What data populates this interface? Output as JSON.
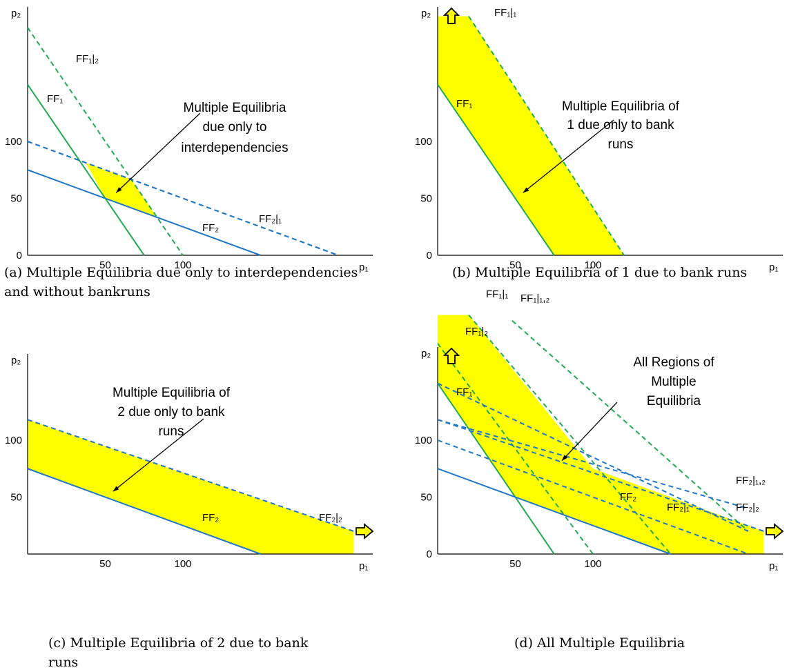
{
  "chart_data": [
    {
      "id": "a",
      "type": "line",
      "caption": "(a) Multiple Equilibria due only to interdependencies and without bankruns",
      "xlabel": "p₁",
      "ylabel": "p₂",
      "xticks": [
        "50",
        "100"
      ],
      "yticks": [
        "0",
        "50",
        "100"
      ],
      "lines": [
        {
          "label": "FF₁|₂",
          "style": "dashed",
          "color": "#22aa55",
          "points": [
            [
              0,
              200
            ],
            [
              100,
              0
            ]
          ]
        },
        {
          "label": "FF₁",
          "style": "solid",
          "color": "#22aa55",
          "points": [
            [
              0,
              150
            ],
            [
              75,
              0
            ]
          ]
        },
        {
          "label": "",
          "style": "dashed",
          "color": "#1f78c8",
          "points": [
            [
              0,
              100
            ],
            [
              200,
              0
            ]
          ]
        },
        {
          "label": "FF₂|₁",
          "style": "dashed",
          "color": "#1f78c8",
          "points": [
            [
              0,
              100
            ],
            [
              200,
              0
            ]
          ]
        },
        {
          "label": "FF₂",
          "style": "solid",
          "color": "#1f78c8",
          "points": [
            [
              0,
              75
            ],
            [
              150,
              0
            ]
          ]
        }
      ],
      "regions": [
        {
          "color": "#ffff00",
          "points": [
            [
              37.5,
              81.25
            ],
            [
              66.7,
              66.7
            ],
            [
              83.3,
              33.3
            ],
            [
              50,
              50
            ]
          ]
        }
      ],
      "annotations": [
        {
          "text": [
            "Multiple Equilibria",
            "due only to",
            "interdependencies"
          ],
          "arrow_to": [
            57,
            55
          ]
        }
      ]
    },
    {
      "id": "b",
      "type": "line",
      "caption": "(b) Multiple Equilibria of 1 due to bank runs",
      "xlabel": "p₁",
      "ylabel": "p₂",
      "xticks": [
        "50",
        "100"
      ],
      "yticks": [
        "0",
        "50",
        "100"
      ],
      "lines": [
        {
          "label": "FF₁|₁",
          "style": "dashed",
          "color": "#22aa55",
          "points": [
            [
              20,
              210
            ],
            [
              120,
              0
            ]
          ]
        },
        {
          "label": "FF₁",
          "style": "solid",
          "color": "#22aa55",
          "points": [
            [
              0,
              150
            ],
            [
              75,
              0
            ]
          ]
        }
      ],
      "regions": [
        {
          "color": "#ffff00",
          "points": [
            [
              0,
              210
            ],
            [
              20,
              210
            ],
            [
              120,
              0
            ],
            [
              75,
              0
            ],
            [
              0,
              150
            ]
          ]
        }
      ],
      "annotations": [
        {
          "text": [
            "Multiple Equilibria of",
            "1 due only to bank",
            "runs"
          ],
          "arrow_to": [
            55,
            55
          ]
        }
      ]
    },
    {
      "id": "c",
      "type": "line",
      "caption": "(c) Multiple Equilibria of 2 due to bank runs",
      "xlabel": "p₁",
      "ylabel": "p₂",
      "xticks": [
        "50",
        "100"
      ],
      "yticks": [
        "50",
        "100"
      ],
      "lines": [
        {
          "label": "FF₂|₂",
          "style": "dashed",
          "color": "#1f78c8",
          "points": [
            [
              0,
              118
            ],
            [
              210,
              20
            ]
          ]
        },
        {
          "label": "FF₂",
          "style": "solid",
          "color": "#1f78c8",
          "points": [
            [
              0,
              75
            ],
            [
              150,
              0
            ]
          ]
        }
      ],
      "regions": [
        {
          "color": "#ffff00",
          "points": [
            [
              0,
              118
            ],
            [
              210,
              20
            ],
            [
              210,
              0
            ],
            [
              150,
              0
            ],
            [
              0,
              75
            ]
          ]
        }
      ],
      "annotations": [
        {
          "text": [
            "Multiple Equilibria of",
            "2 due only to bank",
            "runs"
          ],
          "arrow_to": [
            55,
            55
          ]
        }
      ]
    },
    {
      "id": "d",
      "type": "line",
      "caption": "(d) All Multiple Equilibria",
      "xlabel": "p₁",
      "ylabel": "p₂",
      "xticks": [
        "50",
        "100"
      ],
      "yticks": [
        "0",
        "50",
        "100"
      ],
      "lines": [
        {
          "label": "FF₁|₁",
          "style": "dashed",
          "color": "#22aa55",
          "points": [
            [
              20,
              210
            ],
            [
              150,
              0
            ]
          ]
        },
        {
          "label": "FF₁|₁,₂",
          "style": "dashed",
          "color": "#22aa55",
          "points": [
            [
              48,
              205
            ],
            [
              200,
              20
            ]
          ]
        },
        {
          "label": "FF₁|₂",
          "style": "dashed",
          "color": "#22aa55",
          "points": [
            [
              0,
              185
            ],
            [
              100,
              0
            ]
          ]
        },
        {
          "label": "FF₁",
          "style": "solid",
          "color": "#22aa55",
          "points": [
            [
              0,
              150
            ],
            [
              75,
              0
            ]
          ]
        },
        {
          "label": "",
          "style": "dashed",
          "color": "#1f78c8",
          "points": [
            [
              0,
              150
            ],
            [
              200,
              20
            ]
          ]
        },
        {
          "label": "FF₂|₁,₂",
          "style": "dashed",
          "color": "#1f78c8",
          "points": [
            [
              0,
              118
            ],
            [
              200,
              40
            ]
          ]
        },
        {
          "label": "FF₂|₁",
          "style": "dashed",
          "color": "#1f78c8",
          "points": [
            [
              0,
              100
            ],
            [
              200,
              0
            ]
          ]
        },
        {
          "label": "FF₂|₂",
          "style": "dashed",
          "color": "#1f78c8",
          "points": [
            [
              0,
              118
            ],
            [
              210,
              20
            ]
          ]
        },
        {
          "label": "FF₂",
          "style": "solid",
          "color": "#1f78c8",
          "points": [
            [
              0,
              75
            ],
            [
              150,
              0
            ]
          ]
        }
      ],
      "regions": [
        {
          "color": "#ffff00",
          "points": [
            [
              0,
              210
            ],
            [
              20,
              210
            ],
            [
              100,
              75
            ],
            [
              210,
              20
            ],
            [
              210,
              0
            ],
            [
              150,
              0
            ],
            [
              50,
              50
            ],
            [
              0,
              150
            ]
          ]
        }
      ],
      "annotations": [
        {
          "text": [
            "All Regions of",
            "Multiple",
            "Equilibria"
          ],
          "arrow_to": [
            80,
            82
          ]
        }
      ]
    }
  ]
}
